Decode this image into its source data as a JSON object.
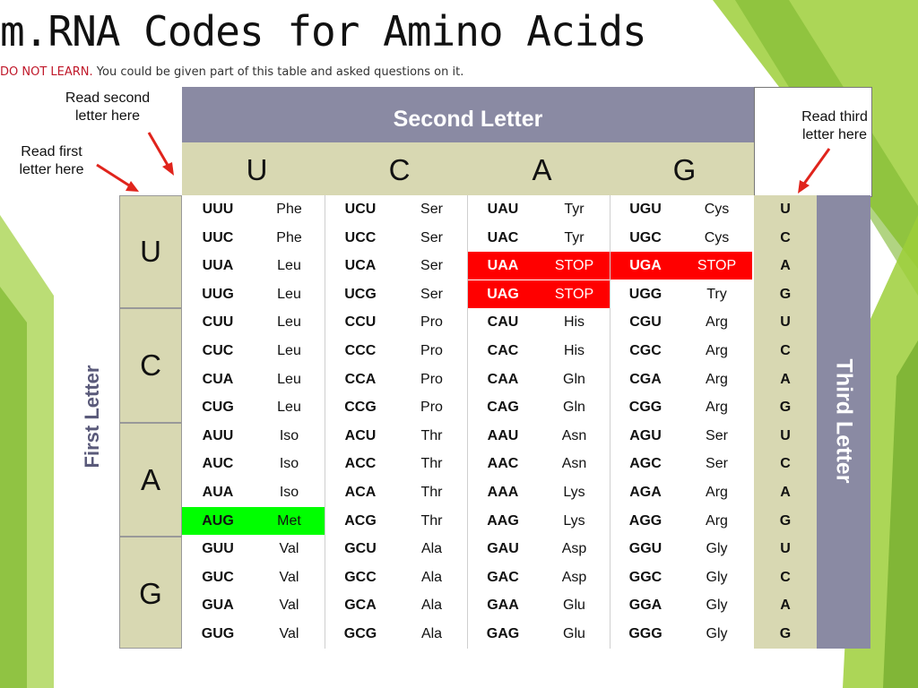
{
  "title": "m.RNA Codes for Amino Acids",
  "subtitle_warning": "DO NOT LEARN.",
  "subtitle_rest": " You could be given part of this table and asked questions on it.",
  "annotations": {
    "read_second": "Read second letter here",
    "read_first": "Read first letter here",
    "read_third": "Read third letter here"
  },
  "second_letter_label": "Second Letter",
  "first_letter_label": "First Letter",
  "third_letter_label": "Third Letter",
  "column_letters": [
    "U",
    "C",
    "A",
    "G"
  ],
  "row_letters": [
    "U",
    "C",
    "A",
    "G"
  ],
  "third_letters": [
    "U",
    "C",
    "A",
    "G",
    "U",
    "C",
    "A",
    "G",
    "U",
    "C",
    "A",
    "G",
    "U",
    "C",
    "A",
    "G"
  ],
  "colors": {
    "banner": "#8a8aa3",
    "header": "#d8d8b2",
    "stop": "#ff0000",
    "start": "#00ff00",
    "arrow": "#e0241c"
  },
  "rows": [
    [
      [
        "UUU",
        "Phe",
        ""
      ],
      [
        "UCU",
        "Ser",
        ""
      ],
      [
        "UAU",
        "Tyr",
        ""
      ],
      [
        "UGU",
        "Cys",
        ""
      ]
    ],
    [
      [
        "UUC",
        "Phe",
        ""
      ],
      [
        "UCC",
        "Ser",
        ""
      ],
      [
        "UAC",
        "Tyr",
        ""
      ],
      [
        "UGC",
        "Cys",
        ""
      ]
    ],
    [
      [
        "UUA",
        "Leu",
        ""
      ],
      [
        "UCA",
        "Ser",
        ""
      ],
      [
        "UAA",
        "STOP",
        "red"
      ],
      [
        "UGA",
        "STOP",
        "red"
      ]
    ],
    [
      [
        "UUG",
        "Leu",
        ""
      ],
      [
        "UCG",
        "Ser",
        ""
      ],
      [
        "UAG",
        "STOP",
        "red"
      ],
      [
        "UGG",
        "Try",
        ""
      ]
    ],
    [
      [
        "CUU",
        "Leu",
        ""
      ],
      [
        "CCU",
        "Pro",
        ""
      ],
      [
        "CAU",
        "His",
        ""
      ],
      [
        "CGU",
        "Arg",
        ""
      ]
    ],
    [
      [
        "CUC",
        "Leu",
        ""
      ],
      [
        "CCC",
        "Pro",
        ""
      ],
      [
        "CAC",
        "His",
        ""
      ],
      [
        "CGC",
        "Arg",
        ""
      ]
    ],
    [
      [
        "CUA",
        "Leu",
        ""
      ],
      [
        "CCA",
        "Pro",
        ""
      ],
      [
        "CAA",
        "Gln",
        ""
      ],
      [
        "CGA",
        "Arg",
        ""
      ]
    ],
    [
      [
        "CUG",
        "Leu",
        ""
      ],
      [
        "CCG",
        "Pro",
        ""
      ],
      [
        "CAG",
        "Gln",
        ""
      ],
      [
        "CGG",
        "Arg",
        ""
      ]
    ],
    [
      [
        "AUU",
        "Iso",
        ""
      ],
      [
        "ACU",
        "Thr",
        ""
      ],
      [
        "AAU",
        "Asn",
        ""
      ],
      [
        "AGU",
        "Ser",
        ""
      ]
    ],
    [
      [
        "AUC",
        "Iso",
        ""
      ],
      [
        "ACC",
        "Thr",
        ""
      ],
      [
        "AAC",
        "Asn",
        ""
      ],
      [
        "AGC",
        "Ser",
        ""
      ]
    ],
    [
      [
        "AUA",
        "Iso",
        ""
      ],
      [
        "ACA",
        "Thr",
        ""
      ],
      [
        "AAA",
        "Lys",
        ""
      ],
      [
        "AGA",
        "Arg",
        ""
      ]
    ],
    [
      [
        "AUG",
        "Met",
        "green"
      ],
      [
        "ACG",
        "Thr",
        ""
      ],
      [
        "AAG",
        "Lys",
        ""
      ],
      [
        "AGG",
        "Arg",
        ""
      ]
    ],
    [
      [
        "GUU",
        "Val",
        ""
      ],
      [
        "GCU",
        "Ala",
        ""
      ],
      [
        "GAU",
        "Asp",
        ""
      ],
      [
        "GGU",
        "Gly",
        ""
      ]
    ],
    [
      [
        "GUC",
        "Val",
        ""
      ],
      [
        "GCC",
        "Ala",
        ""
      ],
      [
        "GAC",
        "Asp",
        ""
      ],
      [
        "GGC",
        "Gly",
        ""
      ]
    ],
    [
      [
        "GUA",
        "Val",
        ""
      ],
      [
        "GCA",
        "Ala",
        ""
      ],
      [
        "GAA",
        "Glu",
        ""
      ],
      [
        "GGA",
        "Gly",
        ""
      ]
    ],
    [
      [
        "GUG",
        "Val",
        ""
      ],
      [
        "GCG",
        "Ala",
        ""
      ],
      [
        "GAG",
        "Glu",
        ""
      ],
      [
        "GGG",
        "Gly",
        ""
      ]
    ]
  ]
}
